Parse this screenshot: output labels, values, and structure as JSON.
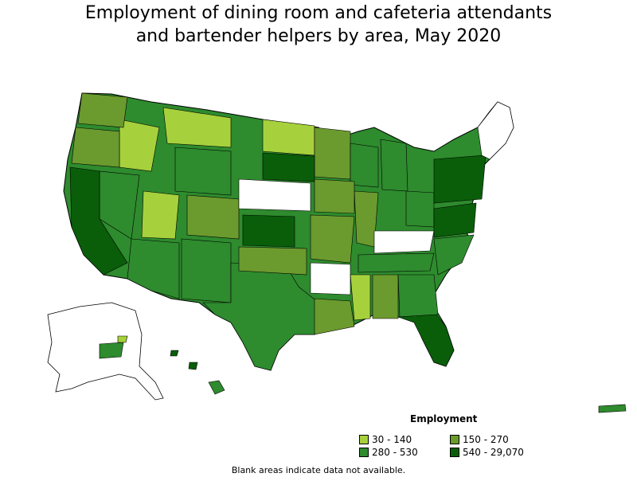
{
  "title_line1": "Employment of dining room and cafeteria attendants",
  "title_line2": "and bartender helpers by area, May 2020",
  "legend": {
    "title": "Employment",
    "items": [
      {
        "label": "30 - 140",
        "color": "#a6d13c"
      },
      {
        "label": "150 - 270",
        "color": "#6b9a2e"
      },
      {
        "label": "280 - 530",
        "color": "#2e8b2e"
      },
      {
        "label": "540 - 29,070",
        "color": "#0a5e0a"
      }
    ]
  },
  "footnote": "Blank areas indicate data not available.",
  "colors": {
    "c1": "#a6d13c",
    "c2": "#6b9a2e",
    "c3": "#2e8b2e",
    "c4": "#0a5e0a",
    "blank": "#ffffff",
    "border": "#000000"
  }
}
